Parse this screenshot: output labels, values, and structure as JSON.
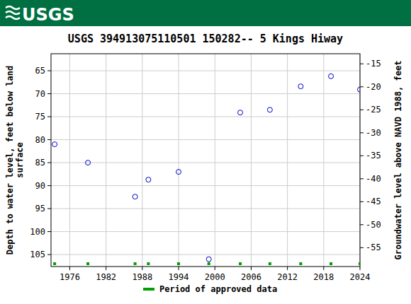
{
  "header": {
    "logo": "USGS"
  },
  "chart_data": {
    "type": "scatter",
    "title": "USGS 394913075110501 150282-- 5 Kings Hiway",
    "y_label": "Depth to water level, feet below land\nsurface",
    "y2_label": "Groundwater level above NAVD 1988, feet",
    "x": [
      1973.5,
      1979.0,
      1986.8,
      1989.0,
      1994.0,
      1999.0,
      2004.2,
      2009.1,
      2014.2,
      2019.2,
      2024.0
    ],
    "values": [
      81.0,
      85.0,
      92.4,
      88.7,
      87.0,
      106.0,
      74.1,
      73.5,
      68.4,
      66.2,
      69.1
    ],
    "color": "#0000cc",
    "marker": "circle",
    "xlim": [
      1972.9,
      2024
    ],
    "xticks": [
      1976,
      1982,
      1988,
      1994,
      2000,
      2006,
      2012,
      2018,
      2024
    ],
    "ylim": [
      61.3,
      107.6
    ],
    "yticks": [
      65,
      70,
      75,
      80,
      85,
      90,
      95,
      100,
      105
    ],
    "y2lim": [
      -12.8,
      -59.1
    ],
    "y2ticks": [
      -15,
      -20,
      -25,
      -30,
      -35,
      -40,
      -45,
      -50,
      -55
    ],
    "grid": true,
    "approved": {
      "name": "Period of approved data",
      "color": "#00a000",
      "x": [
        1973.5,
        1979.0,
        1986.8,
        1989.0,
        1994.0,
        1999.0,
        2004.2,
        2009.1,
        2014.2,
        2019.2,
        2024.0
      ]
    }
  }
}
